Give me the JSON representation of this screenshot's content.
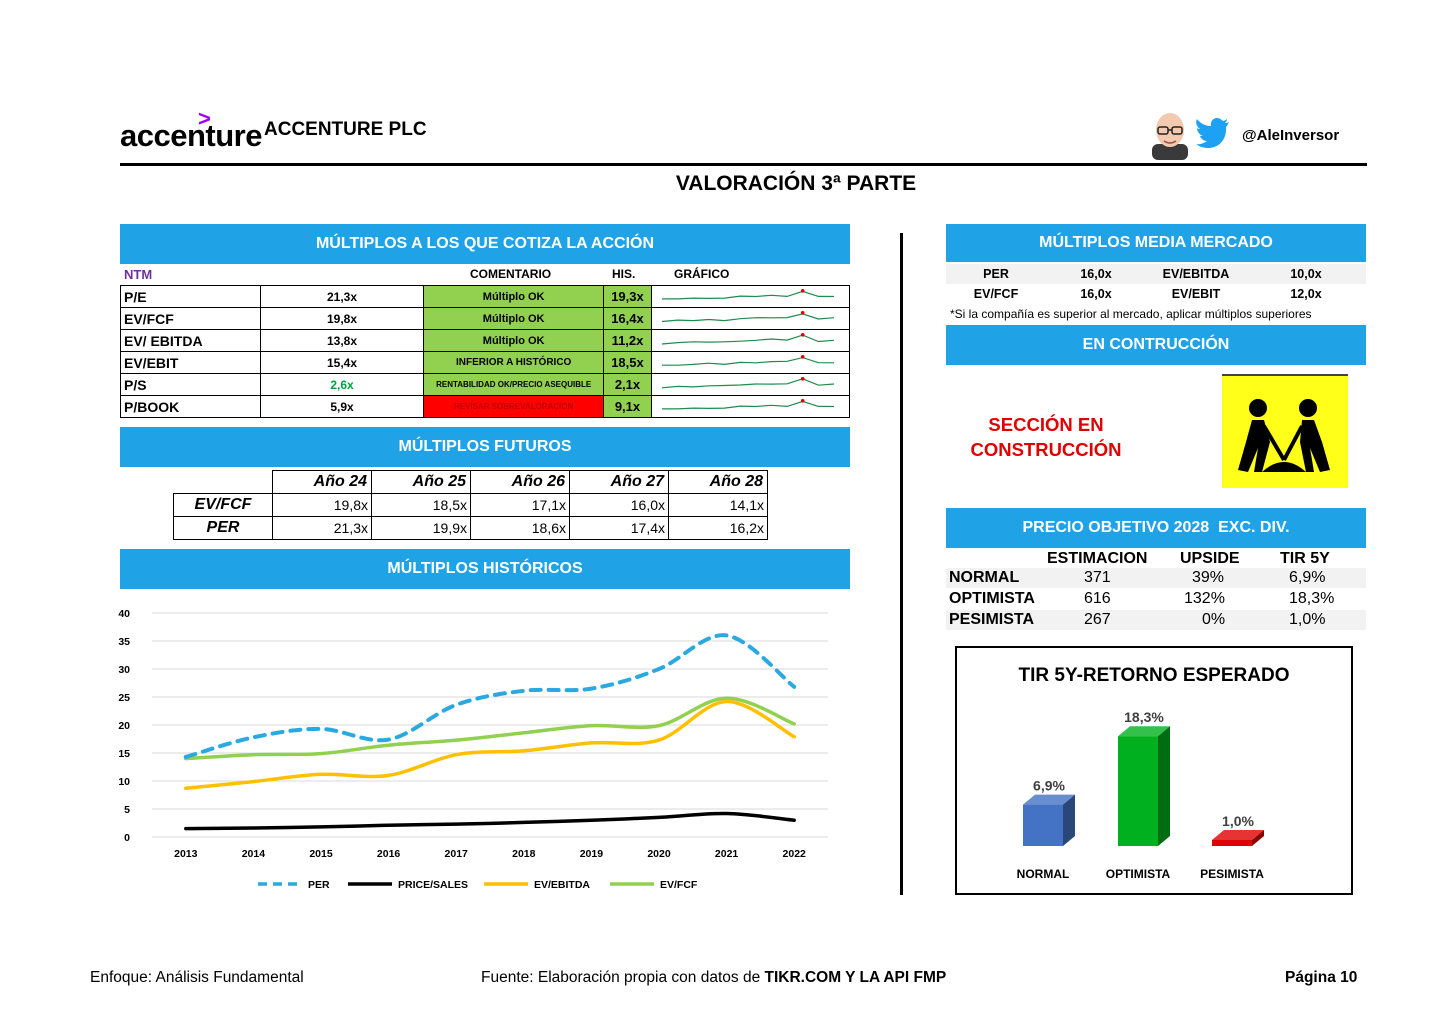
{
  "header": {
    "logo": "accenture",
    "company": "ACCENTURE PLC",
    "handle": "@AleInversor",
    "title": "VALORACIÓN 3ª PARTE"
  },
  "colors": {
    "bar_blue": "#1fa3e6",
    "ok_green": "#92d050",
    "alert_red": "#ff0000",
    "accent_purple": "#a100ff"
  },
  "icons": {
    "avatar": "avatar-icon",
    "twitter": "twitter-bird-icon",
    "construction": "construction-workers-icon"
  },
  "current_multiples": {
    "title": "MÚLTIPLOS A LOS QUE COTIZA LA ACCIÓN",
    "col_ntm": "NTM",
    "col_comment": "COMENTARIO",
    "col_his": "HIS.",
    "col_chart": "GRÁFICO",
    "rows": [
      {
        "label": "P/E",
        "value": "21,3x",
        "comment": "Múltiplo OK",
        "his": "19,3x"
      },
      {
        "label": "EV/FCF",
        "value": "19,8x",
        "comment": "Múltiplo OK",
        "his": "16,4x"
      },
      {
        "label": "EV/ EBITDA",
        "value": "13,8x",
        "comment": "Múltiplo OK",
        "his": "11,2x"
      },
      {
        "label": "EV/EBIT",
        "value": "15,4x",
        "comment": "INFERIOR A HISTÓRICO",
        "his": "18,5x"
      },
      {
        "label": "P/S",
        "value": "2,6x",
        "comment": "RENTABILIDAD OK/PRECIO ASEQUIBLE",
        "his": "2,1x"
      },
      {
        "label": "P/BOOK",
        "value": "5,9x",
        "comment": "REVISAR SOBREVALORACION",
        "his": "9,1x"
      }
    ]
  },
  "future_multiples": {
    "title": "MÚLTIPLOS FUTUROS",
    "years": [
      "Año 24",
      "Año 25",
      "Año 26",
      "Año 27",
      "Año 28"
    ],
    "rows": [
      {
        "label": "EV/FCF",
        "values": [
          "19,8x",
          "18,5x",
          "17,1x",
          "16,0x",
          "14,1x"
        ]
      },
      {
        "label": "PER",
        "values": [
          "21,3x",
          "19,9x",
          "18,6x",
          "17,4x",
          "16,2x"
        ]
      }
    ]
  },
  "historic": {
    "title": "MÚLTIPLOS HISTÓRICOS"
  },
  "market": {
    "title": "MÚLTIPLOS MEDIA MERCADO",
    "rows": [
      {
        "a": "PER",
        "av": "16,0x",
        "b": "EV/EBITDA",
        "bv": "10,0x"
      },
      {
        "a": "EV/FCF",
        "av": "16,0x",
        "b": "EV/EBIT",
        "bv": "12,0x"
      }
    ],
    "note": "*Si la compañía es superior al mercado, aplicar múltiplos superiores"
  },
  "construction": {
    "title": "EN CONTRUCCIÓN",
    "line1": "SECCIÓN EN",
    "line2": "CONSTRUCCIÓN"
  },
  "price_target": {
    "title": "PRECIO OBJETIVO 2028  EXC. DIV.",
    "col1": "ESTIMACION",
    "col2": "UPSIDE",
    "col3": "TIR 5Y",
    "rows": [
      {
        "name": "NORMAL",
        "est": "371",
        "upside": "39%",
        "tir": "6,9%"
      },
      {
        "name": "OPTIMISTA",
        "est": "616",
        "upside": "132%",
        "tir": "18,3%"
      },
      {
        "name": "PESIMISTA",
        "est": "267",
        "upside": "0%",
        "tir": "1,0%"
      }
    ]
  },
  "footer": {
    "left": "Enfoque: Análisis Fundamental",
    "center_prefix": "Fuente: Elaboración propia con datos de ",
    "center_bold": "TIKR.COM Y LA API FMP",
    "right": "Página 10"
  },
  "chart_data": [
    {
      "type": "line",
      "title": "",
      "x": [
        "2013",
        "2014",
        "2015",
        "2016",
        "2017",
        "2018",
        "2019",
        "2020",
        "2021",
        "2022"
      ],
      "ylim": [
        0,
        40
      ],
      "yticks": [
        0,
        5,
        10,
        15,
        20,
        25,
        30,
        35,
        40
      ],
      "grid": true,
      "legend": "bottom",
      "series": [
        {
          "name": "PER",
          "color": "#2aa9e0",
          "dashed": true,
          "values": [
            14.3,
            17.8,
            19.3,
            17.4,
            23.6,
            26.1,
            26.5,
            30.0,
            36.0,
            26.8
          ]
        },
        {
          "name": "PRICE/SALES",
          "color": "#000000",
          "dashed": false,
          "values": [
            1.5,
            1.6,
            1.8,
            2.1,
            2.3,
            2.6,
            3.0,
            3.5,
            4.2,
            3.0
          ]
        },
        {
          "name": "EV/EBITDA",
          "color": "#ffc000",
          "dashed": false,
          "values": [
            8.7,
            9.9,
            11.2,
            11.0,
            14.7,
            15.4,
            16.8,
            17.3,
            24.2,
            17.9
          ]
        },
        {
          "name": "EV/FCF",
          "color": "#92d050",
          "dashed": false,
          "values": [
            14.0,
            14.7,
            14.9,
            16.4,
            17.3,
            18.6,
            19.9,
            19.9,
            24.8,
            20.2
          ]
        }
      ]
    },
    {
      "type": "bar",
      "title": "TIR 5Y-RETORNO ESPERADO",
      "categories": [
        "NORMAL",
        "OPTIMISTA",
        "PESIMISTA"
      ],
      "values": [
        6.9,
        18.3,
        1.0
      ],
      "labels": [
        "6,9%",
        "18,3%",
        "1,0%"
      ],
      "colors": [
        "#4472c4",
        "#00b01e",
        "#e00000"
      ],
      "ylim": [
        0,
        20
      ]
    }
  ]
}
